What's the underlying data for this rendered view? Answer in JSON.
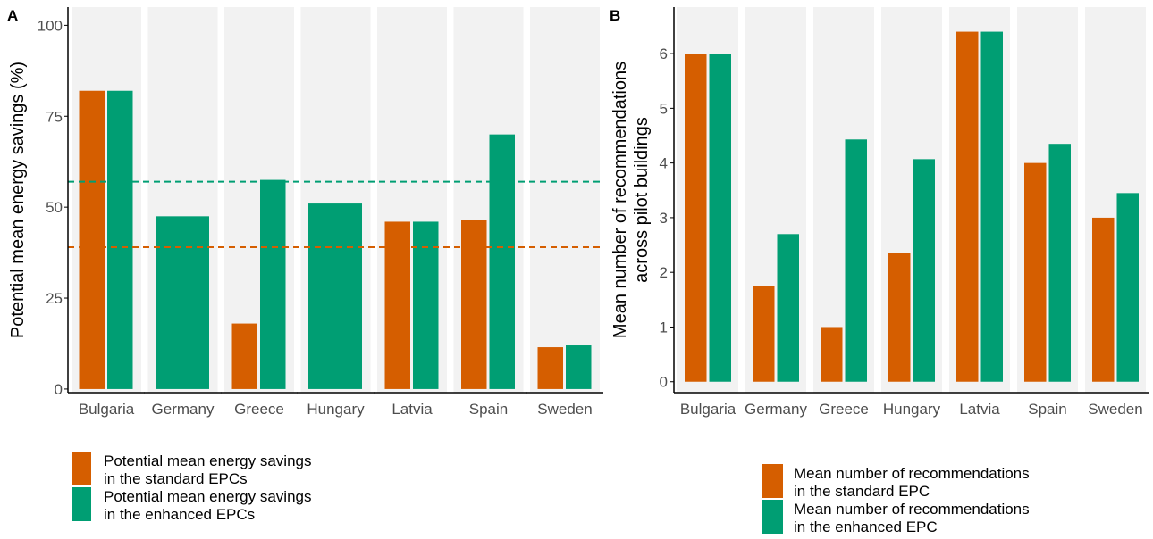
{
  "colors": {
    "standard": "#d55e00",
    "enhanced": "#009e73",
    "panel_bg": "#f2f2f2",
    "axis": "#000000",
    "tick_text": "#4d4d4d"
  },
  "chart_data": [
    {
      "panel": "A",
      "type": "bar",
      "ylabel": "Potential mean energy savings (%)",
      "xlabel": "",
      "ylim": [
        -1,
        105
      ],
      "yticks": [
        0,
        25,
        50,
        75,
        100
      ],
      "categories": [
        "Bulgaria",
        "Germany",
        "Greece",
        "Hungary",
        "Latvia",
        "Spain",
        "Sweden"
      ],
      "series": [
        {
          "name": "standard",
          "values": [
            82,
            null,
            18,
            null,
            46,
            46.5,
            11.5
          ]
        },
        {
          "name": "enhanced",
          "values": [
            82,
            47.5,
            57.5,
            51,
            46,
            70,
            12
          ]
        }
      ],
      "reference_lines": [
        {
          "series": "enhanced",
          "value": 57,
          "style": "dashed"
        },
        {
          "series": "standard",
          "value": 39,
          "style": "dashed"
        }
      ],
      "legend": [
        {
          "series": "standard",
          "line1": "Potential mean energy savings",
          "line2": "in the standard EPCs"
        },
        {
          "series": "enhanced",
          "line1": "Potential mean energy savings",
          "line2": "in the enhanced EPCs"
        }
      ],
      "legend_position": "bottom-left"
    },
    {
      "panel": "B",
      "type": "bar",
      "ylabel": "Mean number of recommendations",
      "ylabel2": "across pilot buildings",
      "xlabel": "",
      "ylim": [
        -0.2,
        6.85
      ],
      "yticks": [
        0,
        1,
        2,
        3,
        4,
        5,
        6
      ],
      "categories": [
        "Bulgaria",
        "Germany",
        "Greece",
        "Hungary",
        "Latvia",
        "Spain",
        "Sweden"
      ],
      "series": [
        {
          "name": "standard",
          "values": [
            6,
            1.75,
            1,
            2.35,
            6.4,
            4,
            3
          ]
        },
        {
          "name": "enhanced",
          "values": [
            6,
            2.7,
            4.43,
            4.07,
            6.4,
            4.35,
            3.45
          ]
        }
      ],
      "legend": [
        {
          "series": "standard",
          "line1": "Mean number of recommendations",
          "line2": "in the standard EPC"
        },
        {
          "series": "enhanced",
          "line1": "Mean number of recommendations",
          "line2": "in the enhanced EPC"
        }
      ],
      "legend_position": "bottom-right"
    }
  ]
}
